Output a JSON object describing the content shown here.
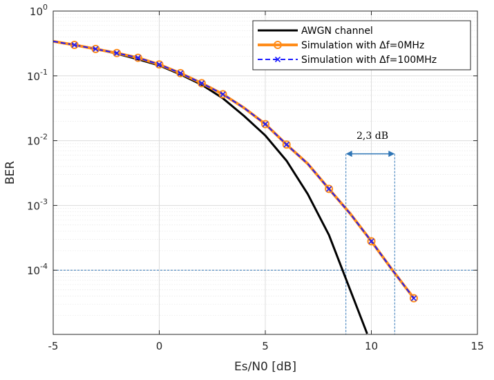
{
  "chart_data": {
    "type": "line",
    "xlabel": "Es/N0 [dB]",
    "ylabel": "BER",
    "xlim": [
      -5,
      15
    ],
    "ylim_log10": [
      -4.99,
      0
    ],
    "x_ticks": [
      -5,
      0,
      5,
      10,
      15
    ],
    "x_tick_labels": [
      "-5",
      "0",
      "5",
      "10",
      "15"
    ],
    "y_ticks_log10": [
      0,
      -1,
      -2,
      -3,
      -4
    ],
    "y_tick_labels": [
      {
        "base": "10",
        "exp": "0"
      },
      {
        "base": "10",
        "exp": "-1"
      },
      {
        "base": "10",
        "exp": "-2"
      },
      {
        "base": "10",
        "exp": "-3"
      },
      {
        "base": "10",
        "exp": "-4"
      }
    ],
    "grid": true,
    "legend_position": "top-right",
    "series": [
      {
        "name": "AWGN channel",
        "color": "#000000",
        "style": "solid",
        "marker": "none",
        "x": [
          -5,
          -4,
          -3,
          -2,
          -1,
          0,
          1,
          2,
          3,
          4,
          5,
          6,
          7,
          8,
          9,
          9.8
        ],
        "y": [
          0.34,
          0.3,
          0.26,
          0.22,
          0.18,
          0.145,
          0.105,
          0.073,
          0.045,
          0.024,
          0.012,
          0.0049,
          0.0015,
          0.00035,
          5e-05,
          1.05e-05
        ]
      },
      {
        "name": "Simulation with Δf=0MHz",
        "color": "#ff8c1a",
        "style": "solid",
        "marker": "circle",
        "x": [
          -5,
          -4,
          -3,
          -2,
          -1,
          0,
          1,
          2,
          3,
          4,
          5,
          6,
          7,
          8,
          9,
          10,
          11,
          12
        ],
        "y": [
          0.34,
          0.3,
          0.26,
          0.225,
          0.19,
          0.15,
          0.11,
          0.077,
          0.052,
          0.032,
          0.018,
          0.0087,
          0.0044,
          0.0018,
          0.00075,
          0.00028,
          0.0001,
          3.7e-05
        ]
      },
      {
        "name": "Simulation with Δf=100MHz",
        "color": "#1a1aff",
        "style": "dashed",
        "marker": "x",
        "x": [
          -5,
          -4,
          -3,
          -2,
          -1,
          0,
          1,
          2,
          3,
          4,
          5,
          6,
          7,
          8,
          9,
          10,
          11,
          12
        ],
        "y": [
          0.34,
          0.3,
          0.26,
          0.225,
          0.19,
          0.15,
          0.11,
          0.077,
          0.052,
          0.032,
          0.018,
          0.0087,
          0.0044,
          0.0018,
          0.00075,
          0.00028,
          0.0001,
          3.7e-05
        ]
      }
    ],
    "marker_x": [
      -4,
      -3,
      -2,
      -1,
      0,
      1,
      2,
      3,
      5,
      6,
      8,
      10,
      12
    ],
    "annotations": {
      "hline_ber": 0.0001,
      "vline_x1": 8.8,
      "vline_x2": 11.1,
      "arrow_ber": 0.01,
      "label": "2,3  dB",
      "color": "#2e75b6"
    }
  }
}
